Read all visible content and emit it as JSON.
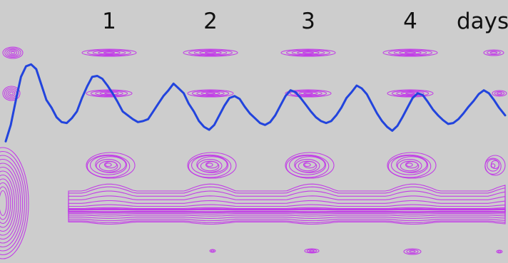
{
  "chart_data": {
    "type": "line",
    "title": "",
    "xlabel": "",
    "ylabel": "",
    "x_axis": {
      "unit_label": "days",
      "ticks": [
        {
          "value": 1,
          "label": "1"
        },
        {
          "value": 2,
          "label": "2"
        },
        {
          "value": 3,
          "label": "3"
        },
        {
          "value": 4,
          "label": "4"
        }
      ],
      "xlim": [
        -0.08,
        4.83
      ]
    },
    "y_axis": {
      "ylim": [
        0,
        1
      ]
    },
    "grid": false,
    "legend": "none",
    "series": [
      {
        "color": "#2244dd",
        "x": [
          -0.08,
          -0.03,
          0.02,
          0.07,
          0.12,
          0.17,
          0.22,
          0.27,
          0.32,
          0.37,
          0.42,
          0.47,
          0.52,
          0.57,
          0.62,
          0.67,
          0.72,
          0.77,
          0.82,
          0.87,
          0.92,
          0.97,
          1.02,
          1.07,
          1.12,
          1.17,
          1.22,
          1.27,
          1.32,
          1.37,
          1.42,
          1.47,
          1.52,
          1.57,
          1.62,
          1.67,
          1.72,
          1.77,
          1.82,
          1.87,
          1.92,
          1.97,
          2.02,
          2.07,
          2.12,
          2.17,
          2.22,
          2.27,
          2.32,
          2.37,
          2.42,
          2.47,
          2.52,
          2.57,
          2.62,
          2.67,
          2.72,
          2.77,
          2.82,
          2.87,
          2.92,
          2.97,
          3.02,
          3.07,
          3.12,
          3.17,
          3.22,
          3.27,
          3.32,
          3.37,
          3.42,
          3.47,
          3.52,
          3.57,
          3.62,
          3.67,
          3.72,
          3.77,
          3.82,
          3.87,
          3.92,
          3.97,
          4.02,
          4.07,
          4.12,
          4.17,
          4.22,
          4.27,
          4.32,
          4.37,
          4.42,
          4.47,
          4.52,
          4.57,
          4.62,
          4.67,
          4.72,
          4.77,
          4.83
        ],
        "y": [
          0.05,
          0.22,
          0.48,
          0.72,
          0.83,
          0.85,
          0.8,
          0.64,
          0.48,
          0.4,
          0.3,
          0.25,
          0.24,
          0.29,
          0.36,
          0.5,
          0.62,
          0.72,
          0.73,
          0.7,
          0.63,
          0.55,
          0.46,
          0.36,
          0.32,
          0.28,
          0.25,
          0.26,
          0.28,
          0.36,
          0.44,
          0.52,
          0.58,
          0.65,
          0.6,
          0.55,
          0.44,
          0.36,
          0.26,
          0.2,
          0.17,
          0.22,
          0.32,
          0.42,
          0.5,
          0.52,
          0.49,
          0.41,
          0.34,
          0.29,
          0.24,
          0.22,
          0.25,
          0.32,
          0.42,
          0.52,
          0.58,
          0.56,
          0.5,
          0.43,
          0.36,
          0.3,
          0.26,
          0.24,
          0.26,
          0.32,
          0.4,
          0.5,
          0.56,
          0.63,
          0.6,
          0.54,
          0.44,
          0.34,
          0.26,
          0.2,
          0.16,
          0.21,
          0.3,
          0.4,
          0.5,
          0.55,
          0.53,
          0.46,
          0.38,
          0.32,
          0.27,
          0.23,
          0.24,
          0.28,
          0.34,
          0.41,
          0.47,
          0.54,
          0.58,
          0.55,
          0.48,
          0.4,
          0.32
        ]
      }
    ],
    "contour_color": "#c23fe6",
    "contour_note_levels": 10
  }
}
